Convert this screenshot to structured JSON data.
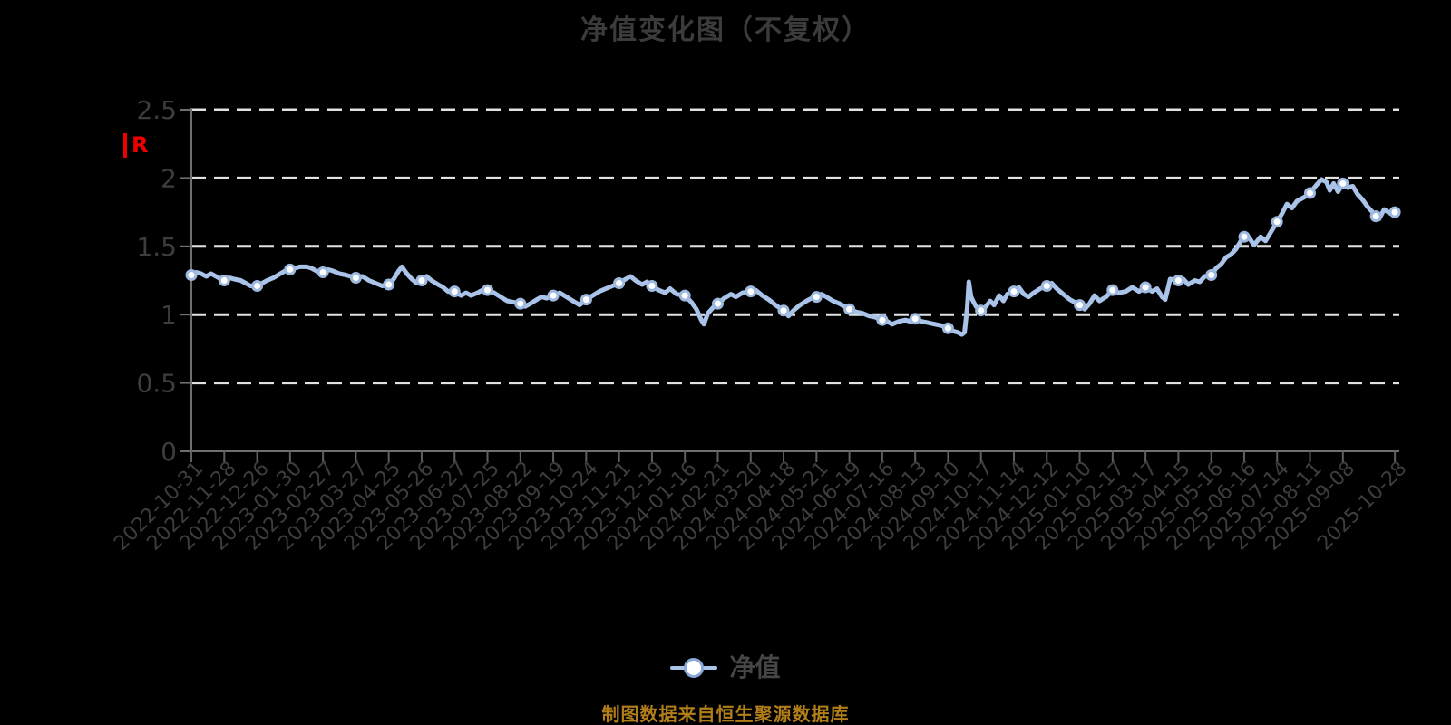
{
  "title": "净值变化图（不复权）",
  "y_axis": {
    "unit_label": "R",
    "tick_labels": [
      "0",
      "0.5",
      "1",
      "1.5",
      "2",
      "2.5"
    ]
  },
  "legend": {
    "label": "净值"
  },
  "footer": "制图数据来自恒生聚源数据库",
  "colors": {
    "background": "#000000",
    "line": "#a9c4e8",
    "marker_fill": "#ffffff",
    "marker_stroke": "#9db9e0",
    "grid": "#e2e2e2",
    "axis": "#6f6f6f",
    "tick": "#5f5f5f",
    "title_text": "#3b3b3b",
    "axis_text": "#3d3d3d",
    "legend_text": "#464646",
    "footer_text": "#b27e18",
    "unit_text": "#ee0000"
  },
  "chart_data": {
    "type": "line",
    "title": "净值变化图（不复权）",
    "series_name": "净值",
    "ylim": [
      0,
      2.5
    ],
    "y_ticks": [
      0,
      0.5,
      1,
      1.5,
      2,
      2.5
    ],
    "grid": "horizontal-dashed",
    "legend_position": "bottom",
    "x_tick_labels": [
      "2022-10-31",
      "2022-11-28",
      "2022-12-26",
      "2023-01-30",
      "2023-02-27",
      "2023-03-27",
      "2023-04-25",
      "2023-05-26",
      "2023-06-27",
      "2023-07-25",
      "2023-08-22",
      "2023-09-19",
      "2023-10-24",
      "2023-11-21",
      "2023-12-19",
      "2024-01-16",
      "2024-02-21",
      "2024-03-20",
      "2024-04-18",
      "2024-05-21",
      "2024-06-19",
      "2024-07-16",
      "2024-08-13",
      "2024-09-10",
      "2024-10-17",
      "2024-11-14",
      "2024-12-12",
      "2025-01-10",
      "2025-02-17",
      "2025-03-17",
      "2025-04-15",
      "2025-05-16",
      "2025-06-16",
      "2025-07-14",
      "2025-08-11",
      "2025-09-08",
      "2025-10-28"
    ],
    "monthly_values": [
      {
        "date": "2022-10-31",
        "value": 1.29
      },
      {
        "date": "2022-11-28",
        "value": 1.25
      },
      {
        "date": "2022-12-26",
        "value": 1.21
      },
      {
        "date": "2023-01-30",
        "value": 1.33
      },
      {
        "date": "2023-02-27",
        "value": 1.31
      },
      {
        "date": "2023-03-27",
        "value": 1.27
      },
      {
        "date": "2023-04-25",
        "value": 1.22
      },
      {
        "date": "2023-05-26",
        "value": 1.25
      },
      {
        "date": "2023-06-27",
        "value": 1.17
      },
      {
        "date": "2023-07-25",
        "value": 1.18
      },
      {
        "date": "2023-08-22",
        "value": 1.08
      },
      {
        "date": "2023-09-19",
        "value": 1.14
      },
      {
        "date": "2023-10-24",
        "value": 1.11
      },
      {
        "date": "2023-11-21",
        "value": 1.23
      },
      {
        "date": "2023-12-19",
        "value": 1.21
      },
      {
        "date": "2024-01-16",
        "value": 1.14
      },
      {
        "date": "2024-02-21",
        "value": 1.08
      },
      {
        "date": "2024-03-20",
        "value": 1.17
      },
      {
        "date": "2024-04-18",
        "value": 1.03
      },
      {
        "date": "2024-05-21",
        "value": 1.13
      },
      {
        "date": "2024-06-19",
        "value": 1.04
      },
      {
        "date": "2024-07-16",
        "value": 0.96
      },
      {
        "date": "2024-08-13",
        "value": 0.97
      },
      {
        "date": "2024-09-10",
        "value": 0.9
      },
      {
        "date": "2024-10-17",
        "value": 1.03
      },
      {
        "date": "2024-11-14",
        "value": 1.17
      },
      {
        "date": "2024-12-12",
        "value": 1.21
      },
      {
        "date": "2025-01-10",
        "value": 1.07
      },
      {
        "date": "2025-02-17",
        "value": 1.18
      },
      {
        "date": "2025-03-17",
        "value": 1.2
      },
      {
        "date": "2025-04-15",
        "value": 1.25
      },
      {
        "date": "2025-05-16",
        "value": 1.29
      },
      {
        "date": "2025-06-16",
        "value": 1.57
      },
      {
        "date": "2025-07-14",
        "value": 1.68
      },
      {
        "date": "2025-08-11",
        "value": 1.89
      },
      {
        "date": "2025-09-08",
        "value": 1.96
      },
      {
        "date": "2025-10-28",
        "value": 1.75
      }
    ],
    "marker_indices": [
      0,
      1,
      2,
      3,
      4,
      5,
      6,
      7,
      8,
      9,
      10,
      11,
      12,
      13,
      14,
      15,
      16,
      17,
      18,
      19,
      20,
      21,
      22,
      23,
      24,
      25,
      26,
      27,
      28,
      29,
      30,
      31,
      32,
      33,
      34,
      35,
      36,
      36.58
    ],
    "dense_points": [
      [
        0,
        1.29
      ],
      [
        0.15,
        1.31
      ],
      [
        0.3,
        1.3
      ],
      [
        0.45,
        1.28
      ],
      [
        0.6,
        1.3
      ],
      [
        0.75,
        1.28
      ],
      [
        0.9,
        1.26
      ],
      [
        1,
        1.25
      ],
      [
        1.15,
        1.27
      ],
      [
        1.3,
        1.26
      ],
      [
        1.5,
        1.25
      ],
      [
        1.65,
        1.23
      ],
      [
        1.8,
        1.21
      ],
      [
        2,
        1.21
      ],
      [
        2.15,
        1.23
      ],
      [
        2.3,
        1.25
      ],
      [
        2.5,
        1.27
      ],
      [
        2.7,
        1.3
      ],
      [
        2.85,
        1.32
      ],
      [
        3,
        1.33
      ],
      [
        3.15,
        1.34
      ],
      [
        3.3,
        1.35
      ],
      [
        3.5,
        1.35
      ],
      [
        3.65,
        1.34
      ],
      [
        3.8,
        1.32
      ],
      [
        4,
        1.31
      ],
      [
        4.15,
        1.33
      ],
      [
        4.3,
        1.32
      ],
      [
        4.5,
        1.3
      ],
      [
        4.7,
        1.29
      ],
      [
        4.85,
        1.28
      ],
      [
        5,
        1.27
      ],
      [
        5.2,
        1.28
      ],
      [
        5.4,
        1.25
      ],
      [
        5.6,
        1.23
      ],
      [
        5.8,
        1.21
      ],
      [
        6,
        1.22
      ],
      [
        6.15,
        1.26
      ],
      [
        6.3,
        1.32
      ],
      [
        6.4,
        1.35
      ],
      [
        6.55,
        1.3
      ],
      [
        6.7,
        1.26
      ],
      [
        6.85,
        1.23
      ],
      [
        7,
        1.25
      ],
      [
        7.15,
        1.28
      ],
      [
        7.3,
        1.25
      ],
      [
        7.5,
        1.22
      ],
      [
        7.65,
        1.2
      ],
      [
        7.8,
        1.17
      ],
      [
        8,
        1.17
      ],
      [
        8.2,
        1.14
      ],
      [
        8.35,
        1.16
      ],
      [
        8.5,
        1.14
      ],
      [
        8.7,
        1.16
      ],
      [
        8.85,
        1.18
      ],
      [
        9,
        1.18
      ],
      [
        9.2,
        1.16
      ],
      [
        9.4,
        1.13
      ],
      [
        9.6,
        1.1
      ],
      [
        9.8,
        1.09
      ],
      [
        10,
        1.08
      ],
      [
        10.15,
        1.06
      ],
      [
        10.3,
        1.08
      ],
      [
        10.5,
        1.11
      ],
      [
        10.65,
        1.13
      ],
      [
        10.8,
        1.12
      ],
      [
        11,
        1.14
      ],
      [
        11.2,
        1.16
      ],
      [
        11.4,
        1.13
      ],
      [
        11.6,
        1.1
      ],
      [
        11.8,
        1.07
      ],
      [
        12,
        1.11
      ],
      [
        12.2,
        1.14
      ],
      [
        12.4,
        1.17
      ],
      [
        12.6,
        1.19
      ],
      [
        12.8,
        1.21
      ],
      [
        13,
        1.23
      ],
      [
        13.2,
        1.26
      ],
      [
        13.35,
        1.28
      ],
      [
        13.5,
        1.25
      ],
      [
        13.7,
        1.22
      ],
      [
        13.85,
        1.24
      ],
      [
        14,
        1.21
      ],
      [
        14.2,
        1.18
      ],
      [
        14.4,
        1.16
      ],
      [
        14.55,
        1.19
      ],
      [
        14.75,
        1.15
      ],
      [
        15,
        1.14
      ],
      [
        15.2,
        1.09
      ],
      [
        15.35,
        1.04
      ],
      [
        15.5,
        0.96
      ],
      [
        15.58,
        0.93
      ],
      [
        15.7,
        1.01
      ],
      [
        15.85,
        1.05
      ],
      [
        16,
        1.08
      ],
      [
        16.2,
        1.12
      ],
      [
        16.4,
        1.15
      ],
      [
        16.55,
        1.13
      ],
      [
        16.75,
        1.16
      ],
      [
        17,
        1.17
      ],
      [
        17.15,
        1.18
      ],
      [
        17.35,
        1.14
      ],
      [
        17.55,
        1.11
      ],
      [
        17.75,
        1.07
      ],
      [
        18,
        1.03
      ],
      [
        18.15,
        0.99
      ],
      [
        18.3,
        1.03
      ],
      [
        18.5,
        1.07
      ],
      [
        18.7,
        1.1
      ],
      [
        18.85,
        1.12
      ],
      [
        19,
        1.13
      ],
      [
        19.15,
        1.15
      ],
      [
        19.3,
        1.13
      ],
      [
        19.5,
        1.1
      ],
      [
        19.7,
        1.08
      ],
      [
        19.85,
        1.06
      ],
      [
        20,
        1.04
      ],
      [
        20.2,
        1.02
      ],
      [
        20.4,
        1.01
      ],
      [
        20.6,
        0.99
      ],
      [
        20.8,
        0.98
      ],
      [
        21,
        0.96
      ],
      [
        21.15,
        0.95
      ],
      [
        21.3,
        0.93
      ],
      [
        21.5,
        0.95
      ],
      [
        21.7,
        0.96
      ],
      [
        21.85,
        0.95
      ],
      [
        22,
        0.97
      ],
      [
        22.2,
        0.95
      ],
      [
        22.4,
        0.94
      ],
      [
        22.6,
        0.93
      ],
      [
        22.8,
        0.92
      ],
      [
        23,
        0.9
      ],
      [
        23.15,
        0.88
      ],
      [
        23.3,
        0.87
      ],
      [
        23.42,
        0.855
      ],
      [
        23.5,
        0.87
      ],
      [
        23.58,
        1.05
      ],
      [
        23.63,
        1.24
      ],
      [
        23.7,
        1.13
      ],
      [
        23.78,
        1.09
      ],
      [
        23.85,
        1.06
      ],
      [
        23.93,
        1.04
      ],
      [
        24,
        1.03
      ],
      [
        24.15,
        1.06
      ],
      [
        24.28,
        1.1
      ],
      [
        24.4,
        1.07
      ],
      [
        24.55,
        1.14
      ],
      [
        24.68,
        1.1
      ],
      [
        24.8,
        1.15
      ],
      [
        25,
        1.17
      ],
      [
        25.15,
        1.2
      ],
      [
        25.3,
        1.15
      ],
      [
        25.45,
        1.13
      ],
      [
        25.6,
        1.16
      ],
      [
        25.8,
        1.19
      ],
      [
        26,
        1.21
      ],
      [
        26.15,
        1.23
      ],
      [
        26.3,
        1.19
      ],
      [
        26.5,
        1.15
      ],
      [
        26.7,
        1.11
      ],
      [
        26.85,
        1.09
      ],
      [
        27,
        1.07
      ],
      [
        27.15,
        1.04
      ],
      [
        27.3,
        1.08
      ],
      [
        27.45,
        1.14
      ],
      [
        27.6,
        1.1
      ],
      [
        27.8,
        1.13
      ],
      [
        28,
        1.18
      ],
      [
        28.2,
        1.16
      ],
      [
        28.4,
        1.17
      ],
      [
        28.6,
        1.2
      ],
      [
        28.8,
        1.17
      ],
      [
        29,
        1.2
      ],
      [
        29.2,
        1.17
      ],
      [
        29.35,
        1.19
      ],
      [
        29.5,
        1.13
      ],
      [
        29.6,
        1.11
      ],
      [
        29.75,
        1.26
      ],
      [
        30,
        1.25
      ],
      [
        30.15,
        1.26
      ],
      [
        30.3,
        1.22
      ],
      [
        30.5,
        1.25
      ],
      [
        30.65,
        1.24
      ],
      [
        30.8,
        1.28
      ],
      [
        31,
        1.29
      ],
      [
        31.15,
        1.34
      ],
      [
        31.3,
        1.37
      ],
      [
        31.45,
        1.42
      ],
      [
        31.6,
        1.44
      ],
      [
        31.75,
        1.48
      ],
      [
        31.9,
        1.54
      ],
      [
        32,
        1.57
      ],
      [
        32.1,
        1.58
      ],
      [
        32.3,
        1.51
      ],
      [
        32.5,
        1.57
      ],
      [
        32.65,
        1.54
      ],
      [
        32.8,
        1.6
      ],
      [
        33,
        1.68
      ],
      [
        33.15,
        1.74
      ],
      [
        33.3,
        1.81
      ],
      [
        33.45,
        1.78
      ],
      [
        33.6,
        1.83
      ],
      [
        33.75,
        1.85
      ],
      [
        33.9,
        1.87
      ],
      [
        34,
        1.89
      ],
      [
        34.2,
        1.95
      ],
      [
        34.35,
        1.99
      ],
      [
        34.5,
        1.97
      ],
      [
        34.6,
        1.91
      ],
      [
        34.72,
        1.96
      ],
      [
        34.85,
        1.9
      ],
      [
        35,
        1.96
      ],
      [
        35.15,
        1.93
      ],
      [
        35.3,
        1.94
      ],
      [
        35.45,
        1.88
      ],
      [
        35.6,
        1.84
      ],
      [
        35.75,
        1.79
      ],
      [
        35.9,
        1.75
      ],
      [
        36,
        1.72
      ],
      [
        36.1,
        1.7
      ],
      [
        36.25,
        1.77
      ],
      [
        36.45,
        1.74
      ],
      [
        36.58,
        1.75
      ]
    ]
  }
}
